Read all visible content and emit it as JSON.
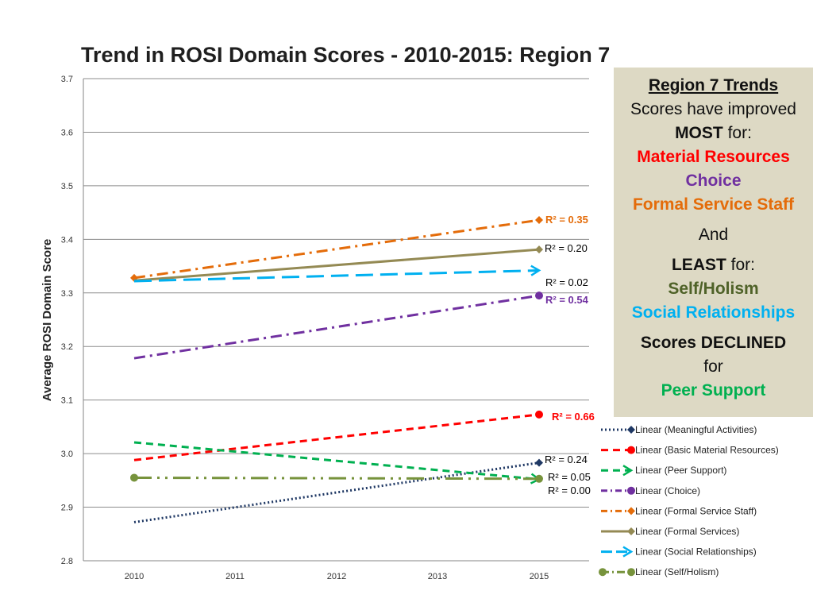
{
  "chart_data": {
    "type": "line",
    "title": "Trend in ROSI Domain Scores - 2010-2015: Region 7",
    "xlabel": "",
    "ylabel": "Average ROSI Domain Score",
    "categories": [
      "2010",
      "2011",
      "2012",
      "2013",
      "2015"
    ],
    "ylim": [
      2.8,
      3.7
    ],
    "yticks": [
      "2.8",
      "2.9",
      "3.0",
      "3.1",
      "3.2",
      "3.3",
      "3.4",
      "3.5",
      "3.6",
      "3.7"
    ],
    "grid": true,
    "legend_position": "right",
    "series": [
      {
        "name": "Linear (Meaningful Activities)",
        "color": "#1f3864",
        "style": "dotted",
        "marker": "diamond",
        "start": 2.872,
        "end": 2.983,
        "r2": "R² = 0.24",
        "r2_color": "#000000"
      },
      {
        "name": "Linear (Basic Material Resources)",
        "color": "#ff0000",
        "style": "dashed",
        "marker": "circle",
        "start": 2.988,
        "end": 3.073,
        "r2": "R² = 0.66",
        "r2_color": "#ff0000"
      },
      {
        "name": "Linear (Peer Support)",
        "color": "#00b050",
        "style": "dashed",
        "marker": "arrow",
        "start": 3.021,
        "end": 2.952,
        "r2": "R² = 0.05",
        "r2_color": "#000000"
      },
      {
        "name": "Linear (Choice)",
        "color": "#7030a0",
        "style": "dashdot",
        "marker": "circle",
        "start": 3.178,
        "end": 3.295,
        "r2": "R² = 0.54",
        "r2_color": "#7030a0"
      },
      {
        "name": "Linear (Formal Service Staff)",
        "color": "#e46c0a",
        "style": "dashdot",
        "marker": "diamond",
        "start": 3.328,
        "end": 3.436,
        "r2": "R² = 0.35",
        "r2_color": "#e46c0a"
      },
      {
        "name": "Linear (Formal Services)",
        "color": "#948a54",
        "style": "solid",
        "marker": "diamond",
        "start": 3.323,
        "end": 3.381,
        "r2": "R² = 0.20",
        "r2_color": "#000000"
      },
      {
        "name": "Linear (Social Relationships)",
        "color": "#00b0f0",
        "style": "longdash",
        "marker": "arrow",
        "start": 3.322,
        "end": 3.342,
        "r2": "R² = 0.02",
        "r2_color": "#000000"
      },
      {
        "name": "Linear (Self/Holism)",
        "color": "#77933c",
        "style": "longdashdotdot",
        "marker": "circle",
        "start": 2.955,
        "end": 2.953,
        "r2": "R² = 0.00",
        "r2_color": "#000000"
      }
    ]
  },
  "summary_box": {
    "heading": "Region 7 Trends",
    "line1": "Scores have improved",
    "most_word": "MOST",
    "for_word": " for:",
    "improved_most": [
      "Material Resources",
      "Choice",
      "Formal Service Staff"
    ],
    "and_word": "And",
    "least_word": "LEAST",
    "improved_least": [
      "Self/Holism",
      "Social Relationships"
    ],
    "declined_heading": "Scores DECLINED",
    "declined_for": "for",
    "declined": [
      "Peer Support"
    ]
  }
}
